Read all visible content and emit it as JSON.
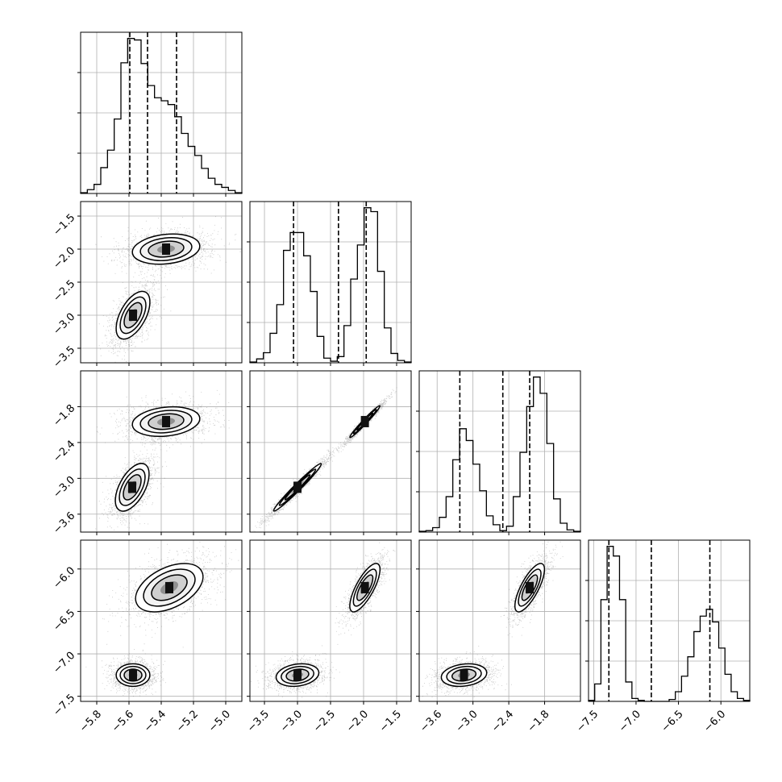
{
  "chart_data": {
    "type": "corner",
    "grid": true,
    "parameters": [
      {
        "range": [
          -5.9,
          -4.9
        ],
        "ticks": [
          -5.8,
          -5.6,
          -5.4,
          -5.2,
          -5.0
        ],
        "tick_labels": [
          "−5.8",
          "−5.6",
          "−5.4",
          "−5.2",
          "−5.0"
        ],
        "quantiles": [
          -5.595,
          -5.485,
          -5.305
        ]
      },
      {
        "range": [
          -3.72,
          -1.28
        ],
        "ticks": [
          -3.5,
          -3.0,
          -2.5,
          -2.0,
          -1.5
        ],
        "tick_labels": [
          "−3.5",
          "−3.0",
          "−2.5",
          "−2.0",
          "−1.5"
        ],
        "quantiles": [
          -3.06,
          -2.38,
          -1.96
        ]
      },
      {
        "range": [
          -3.9,
          -1.2
        ],
        "ticks": [
          -3.6,
          -3.0,
          -2.4,
          -1.8
        ],
        "tick_labels": [
          "−3.6",
          "−3.0",
          "−2.4",
          "−1.8"
        ],
        "quantiles": [
          -3.22,
          -2.5,
          -2.05
        ]
      },
      {
        "range": [
          -7.56,
          -5.66
        ],
        "ticks": [
          -7.5,
          -7.0,
          -6.5,
          -6.0
        ],
        "tick_labels": [
          "−7.5",
          "−7.0",
          "−6.5",
          "−6.0"
        ],
        "quantiles": [
          -7.32,
          -6.82,
          -6.13
        ]
      }
    ],
    "histograms": [
      {
        "param": 0,
        "counts": [
          1,
          5,
          12,
          34,
          57,
          98,
          172,
          204,
          202,
          171,
          142,
          126,
          122,
          117,
          101,
          79,
          62,
          50,
          33,
          20,
          12,
          8,
          4,
          1
        ]
      },
      {
        "param": 1,
        "counts": [
          1,
          5,
          13,
          38,
          75,
          145,
          168,
          168,
          138,
          92,
          34,
          6,
          2,
          8,
          48,
          108,
          152,
          200,
          195,
          118,
          45,
          12,
          3,
          1
        ]
      },
      {
        "param": 2,
        "counts": [
          1,
          2,
          6,
          20,
          48,
          98,
          140,
          124,
          92,
          56,
          22,
          10,
          2,
          8,
          48,
          108,
          170,
          210,
          188,
          120,
          45,
          12,
          3,
          1
        ]
      },
      {
        "param": 3,
        "counts": [
          1,
          18,
          105,
          160,
          150,
          105,
          20,
          3,
          1,
          0,
          0,
          0,
          0,
          2,
          10,
          26,
          46,
          72,
          88,
          95,
          82,
          55,
          28,
          10,
          3,
          1
        ]
      }
    ],
    "pairs": [
      {
        "x_param": 0,
        "y_param": 1,
        "modes": [
          {
            "cx": -5.37,
            "cy": -2.0,
            "sx": 0.11,
            "sy": 0.12,
            "rho": 0.2,
            "weight": 0.5
          },
          {
            "cx": -5.575,
            "cy": -3.0,
            "sx": 0.055,
            "sy": 0.19,
            "rho": 0.55,
            "weight": 0.5
          }
        ]
      },
      {
        "x_param": 0,
        "y_param": 2,
        "modes": [
          {
            "cx": -5.37,
            "cy": -2.05,
            "sx": 0.11,
            "sy": 0.13,
            "rho": 0.2,
            "weight": 0.5
          },
          {
            "cx": -5.58,
            "cy": -3.15,
            "sx": 0.055,
            "sy": 0.21,
            "rho": 0.55,
            "weight": 0.5
          }
        ]
      },
      {
        "x_param": 0,
        "y_param": 3,
        "modes": [
          {
            "cx": -5.35,
            "cy": -6.22,
            "sx": 0.11,
            "sy": 0.15,
            "rho": 0.45,
            "weight": 0.5
          },
          {
            "cx": -5.575,
            "cy": -7.25,
            "sx": 0.055,
            "sy": 0.07,
            "rho": 0.0,
            "weight": 0.5
          }
        ]
      },
      {
        "x_param": 1,
        "y_param": 2,
        "modes": [
          {
            "cx": -1.98,
            "cy": -2.05,
            "sx": 0.12,
            "sy": 0.14,
            "rho": 0.98,
            "weight": 0.5
          },
          {
            "cx": -3.0,
            "cy": -3.15,
            "sx": 0.19,
            "sy": 0.21,
            "rho": 0.98,
            "weight": 0.5
          }
        ]
      },
      {
        "x_param": 1,
        "y_param": 3,
        "modes": [
          {
            "cx": -1.98,
            "cy": -6.22,
            "sx": 0.12,
            "sy": 0.15,
            "rho": 0.75,
            "weight": 0.5
          },
          {
            "cx": -3.0,
            "cy": -7.25,
            "sx": 0.17,
            "sy": 0.07,
            "rho": 0.2,
            "weight": 0.5
          }
        ]
      },
      {
        "x_param": 2,
        "y_param": 3,
        "modes": [
          {
            "cx": -2.05,
            "cy": -6.22,
            "sx": 0.13,
            "sy": 0.15,
            "rho": 0.75,
            "weight": 0.5
          },
          {
            "cx": -3.15,
            "cy": -7.25,
            "sx": 0.2,
            "sy": 0.07,
            "rho": 0.2,
            "weight": 0.5
          }
        ]
      }
    ]
  }
}
